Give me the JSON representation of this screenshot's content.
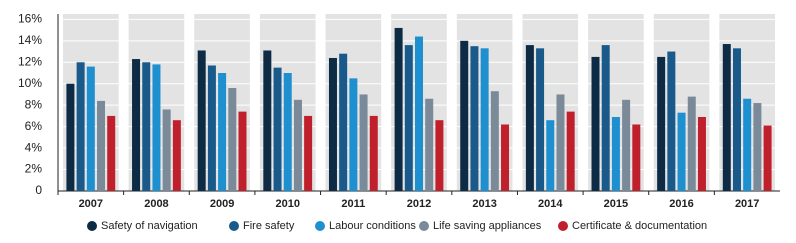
{
  "chart_data": {
    "type": "bar",
    "categories": [
      "2007",
      "2008",
      "2009",
      "2010",
      "2011",
      "2012",
      "2013",
      "2014",
      "2015",
      "2016",
      "2017"
    ],
    "series": [
      {
        "name": "Safety of navigation",
        "color": "#0d2b45",
        "values": [
          10,
          12.3,
          13.1,
          13.1,
          12.4,
          15.2,
          14,
          13.6,
          12.5,
          12.5,
          13.7
        ]
      },
      {
        "name": "Fire safety",
        "color": "#1a5a8a",
        "values": [
          12,
          12,
          11.7,
          11.5,
          12.8,
          13.6,
          13.5,
          13.3,
          13.6,
          13,
          13.3
        ]
      },
      {
        "name": "Labour conditions",
        "color": "#1e8fcf",
        "values": [
          11.6,
          11.8,
          11,
          11,
          10.5,
          14.4,
          13.3,
          6.6,
          6.9,
          7.3,
          8.6
        ]
      },
      {
        "name": "Life saving appliances",
        "color": "#7a8a99",
        "values": [
          8.4,
          7.6,
          9.6,
          8.5,
          9,
          8.6,
          9.3,
          9,
          8.5,
          8.8,
          8.2
        ]
      },
      {
        "name": "Certificate & documentation",
        "color": "#c0202c",
        "values": [
          7,
          6.6,
          7.4,
          7,
          7,
          6.6,
          6.2,
          7.4,
          6.2,
          6.9,
          6.1
        ]
      }
    ],
    "ylim": [
      0,
      16.5
    ],
    "yticks": [
      {
        "value": 0,
        "label": "0"
      },
      {
        "value": 2,
        "label": "2%"
      },
      {
        "value": 4,
        "label": "4%"
      },
      {
        "value": 6,
        "label": "6%"
      },
      {
        "value": 8,
        "label": "8%"
      },
      {
        "value": 10,
        "label": "10%"
      },
      {
        "value": 12,
        "label": "12%"
      },
      {
        "value": 14,
        "label": "14%"
      },
      {
        "value": 16,
        "label": "16%"
      }
    ],
    "grid": true
  }
}
